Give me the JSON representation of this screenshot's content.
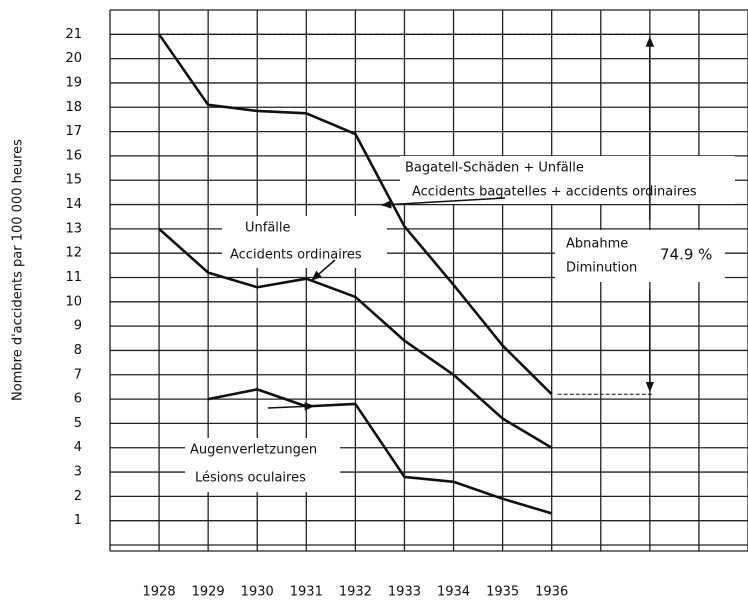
{
  "chart_data": {
    "type": "line",
    "y_axis_label": "Nombre d'accidents par 100 000 heures",
    "x": [
      1928,
      1929,
      1930,
      1931,
      1932,
      1933,
      1934,
      1935,
      1936
    ],
    "xlim": [
      1927,
      1940
    ],
    "xticks": [
      1928,
      1929,
      1930,
      1931,
      1932,
      1933,
      1934,
      1935,
      1936
    ],
    "ylim": [
      0,
      22
    ],
    "yticks": [
      1,
      2,
      3,
      4,
      5,
      6,
      7,
      8,
      9,
      10,
      11,
      12,
      13,
      14,
      15,
      16,
      17,
      18,
      19,
      20,
      21
    ],
    "grid": true,
    "series": [
      {
        "name": "Bagatell-Schäden + Unfälle",
        "subname": "Accidents bagatelles + accidents ordinaires",
        "color": "#111111",
        "values": [
          21,
          18.1,
          17.85,
          17.75,
          16.9,
          13.1,
          10.7,
          8.2,
          6.2
        ]
      },
      {
        "name": "Unfälle",
        "subname": "Accidents ordinaires",
        "color": "#111111",
        "values": [
          13,
          11.2,
          10.6,
          10.95,
          10.2,
          8.4,
          7,
          5.2,
          4
        ]
      },
      {
        "name": "Augenverletzungen",
        "subname": "Lésions oculaires",
        "color": "#111111",
        "values": [
          null,
          6.0,
          6.4,
          5.7,
          5.8,
          2.8,
          2.6,
          1.9,
          1.3
        ]
      }
    ],
    "annotations": {
      "decrease_de": "Abnahme",
      "decrease_fr": "Diminution",
      "decrease_value": "74.9 %"
    }
  }
}
